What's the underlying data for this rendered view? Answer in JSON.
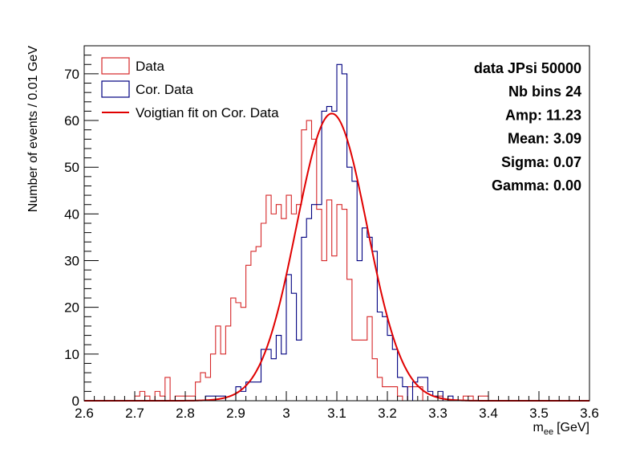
{
  "chart_data": {
    "type": "histogram",
    "xlim": [
      2.6,
      3.6
    ],
    "ylim": [
      0,
      76
    ],
    "bin_width": 0.01,
    "x_ticks": [
      "2.6",
      "2.7",
      "2.8",
      "2.9",
      "3",
      "3.1",
      "3.2",
      "3.3",
      "3.4",
      "3.5",
      "3.6"
    ],
    "y_ticks": [
      "0",
      "10",
      "20",
      "30",
      "40",
      "50",
      "60",
      "70"
    ],
    "ylabel": "Number of events / 0.01 GeV",
    "xlabel_main": "m",
    "xlabel_sub": "ee",
    "xlabel_unit": "[GeV]",
    "legend": {
      "position": "top-left",
      "entries": [
        {
          "label": "Data",
          "color": "#d62728",
          "kind": "box"
        },
        {
          "label": "Cor. Data",
          "color": "#000080",
          "kind": "box"
        },
        {
          "label": "Voigtian fit on Cor. Data",
          "color": "#e00000",
          "kind": "line"
        }
      ]
    },
    "stats_box": [
      "data JPsi 50000",
      "Nb bins 24",
      "Amp: 11.23",
      "Mean: 3.09",
      "Sigma: 0.07",
      "Gamma: 0.00"
    ],
    "series": [
      {
        "name": "Data",
        "color": "#d62728",
        "bin_start": 2.7,
        "values": [
          1,
          2,
          1,
          0,
          2,
          1,
          5,
          0,
          1,
          1,
          1,
          1,
          4,
          6,
          5,
          10,
          16,
          10,
          16,
          22,
          21,
          20,
          29,
          32,
          33,
          38,
          44,
          40,
          42,
          39,
          44,
          40,
          42,
          58,
          60,
          56,
          41,
          30,
          43,
          31,
          42,
          41,
          26,
          13,
          13,
          13,
          18,
          9,
          5,
          3,
          3,
          3,
          1,
          0,
          3,
          3,
          3,
          0,
          0,
          0,
          1,
          0,
          0,
          0,
          0,
          1,
          1,
          0,
          1,
          1
        ]
      },
      {
        "name": "Cor. Data",
        "color": "#000080",
        "bin_start": 2.84,
        "values": [
          1,
          1,
          1,
          1,
          0,
          0,
          3,
          2,
          4,
          4,
          4,
          11,
          11,
          9,
          14,
          10,
          27,
          23,
          13,
          35,
          39,
          42,
          42,
          62,
          63,
          62,
          72,
          70,
          50,
          47,
          30,
          37,
          35,
          32,
          19,
          18,
          14,
          11,
          5,
          3,
          0,
          4,
          5,
          5,
          2,
          1,
          2,
          0,
          1
        ]
      }
    ],
    "fit": {
      "name": "Voigtian fit on Cor. Data",
      "color": "#e00000",
      "mean": 3.09,
      "sigma": 0.07,
      "gamma": 0.0,
      "peak": 61.5
    }
  }
}
